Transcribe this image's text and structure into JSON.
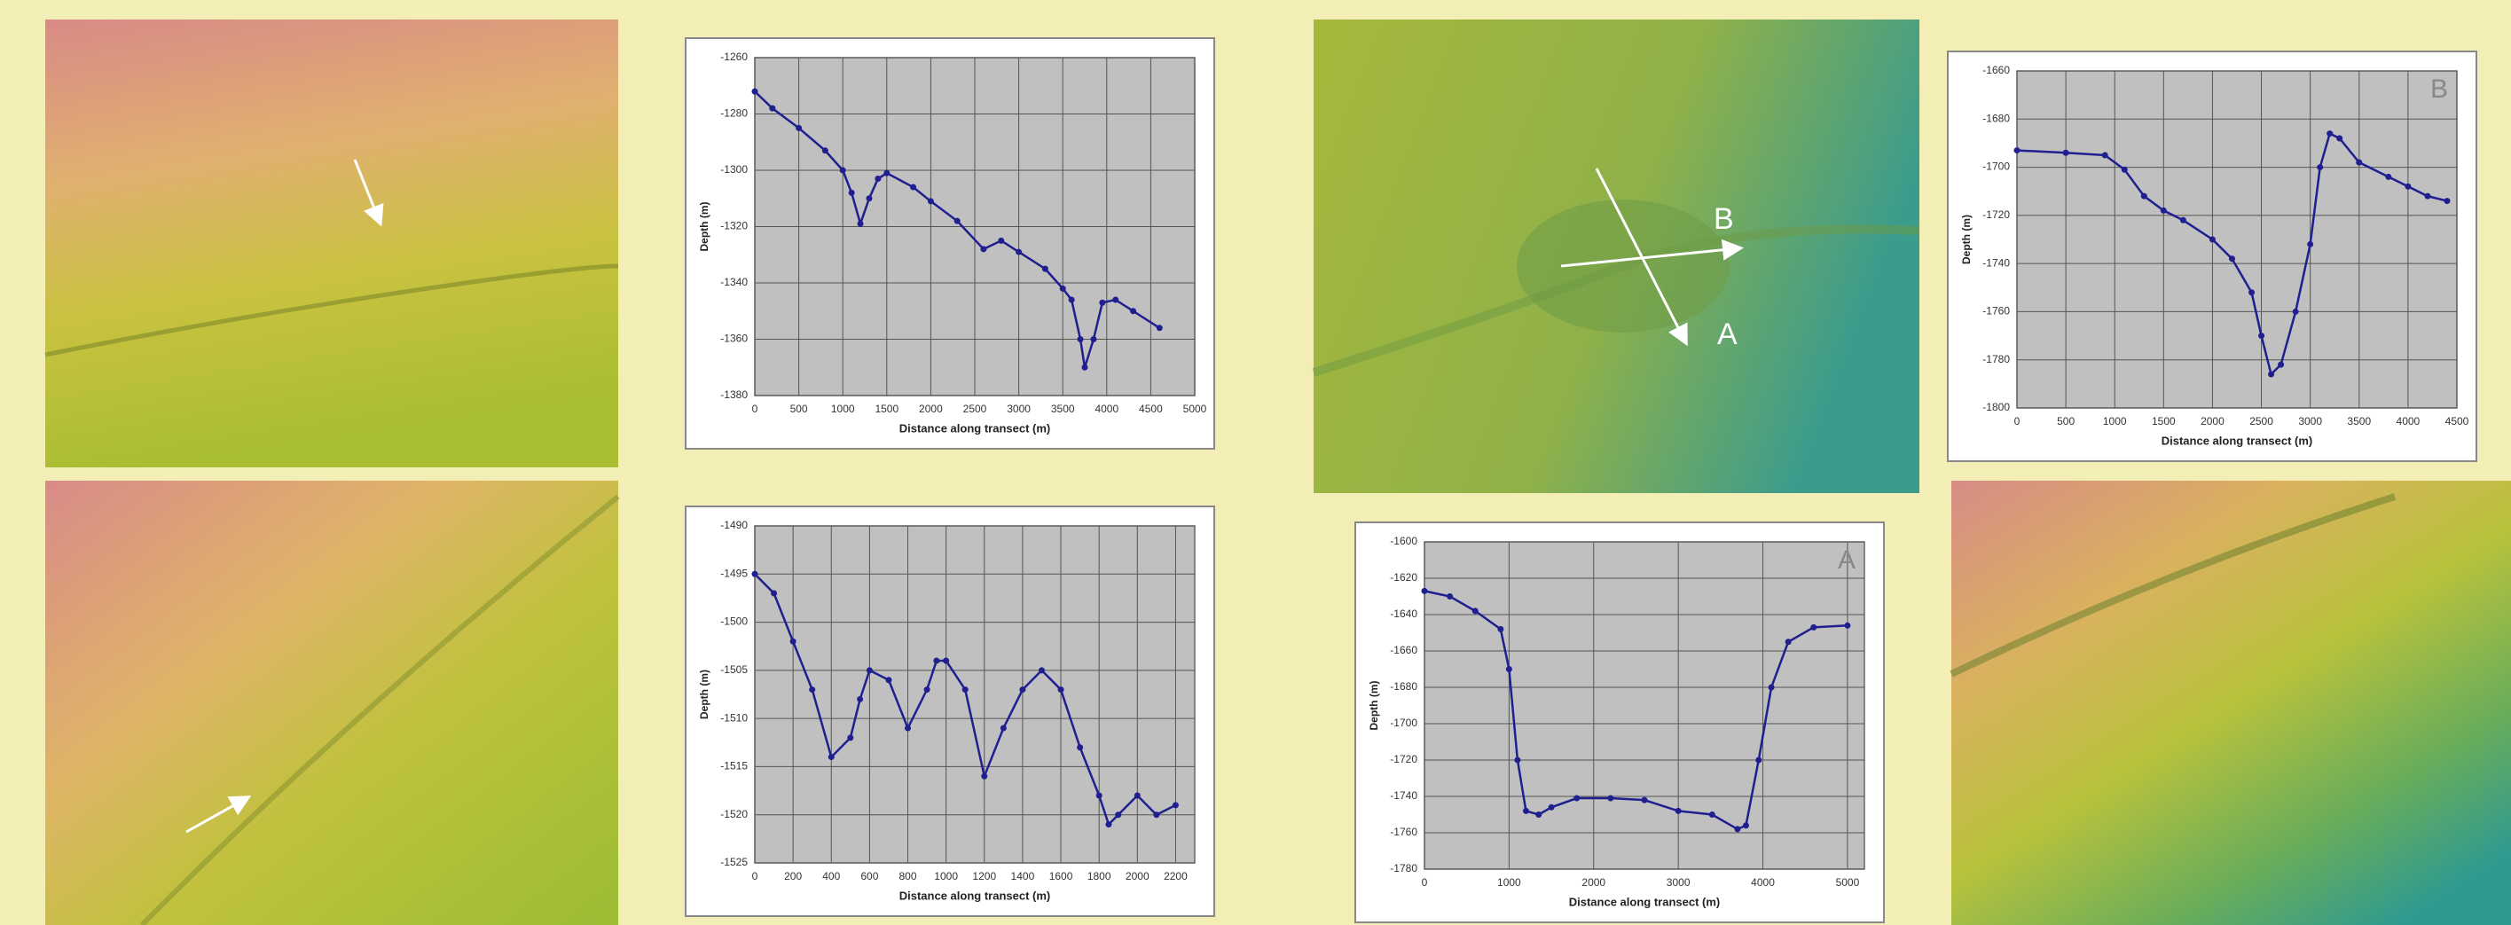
{
  "image_labels": [
    "B",
    "A"
  ],
  "chart_data": [
    {
      "type": "line",
      "xlabel": "Distance along transect (m)",
      "ylabel": "Depth (m)",
      "color": "#1f1f8f",
      "grid": true,
      "xlim": [
        0,
        5000
      ],
      "xticks": [
        0,
        500,
        1000,
        1500,
        2000,
        2500,
        3000,
        3500,
        4000,
        4500,
        5000
      ],
      "ylim": [
        -1380,
        -1260
      ],
      "yticks": [
        -1260,
        -1280,
        -1300,
        -1320,
        -1340,
        -1360,
        -1380
      ],
      "x": [
        0,
        200,
        500,
        800,
        1000,
        1100,
        1200,
        1300,
        1400,
        1500,
        1800,
        2000,
        2300,
        2600,
        2800,
        3000,
        3300,
        3500,
        3600,
        3700,
        3750,
        3850,
        3950,
        4100,
        4300,
        4600
      ],
      "values": [
        -1272,
        -1278,
        -1285,
        -1293,
        -1300,
        -1308,
        -1319,
        -1310,
        -1303,
        -1301,
        -1306,
        -1311,
        -1318,
        -1328,
        -1325,
        -1329,
        -1335,
        -1342,
        -1346,
        -1360,
        -1370,
        -1360,
        -1347,
        -1346,
        -1350,
        -1356
      ]
    },
    {
      "type": "line",
      "xlabel": "Distance along transect (m)",
      "ylabel": "Depth (m)",
      "color": "#1f1f8f",
      "grid": true,
      "xlim": [
        0,
        2300
      ],
      "xticks": [
        0,
        200,
        400,
        600,
        800,
        1000,
        1200,
        1400,
        1600,
        1800,
        2000,
        2200
      ],
      "ylim": [
        -1525,
        -1490
      ],
      "yticks": [
        -1490,
        -1495,
        -1500,
        -1505,
        -1510,
        -1515,
        -1520,
        -1525
      ],
      "x": [
        0,
        100,
        200,
        300,
        400,
        500,
        550,
        600,
        700,
        800,
        900,
        950,
        1000,
        1100,
        1200,
        1300,
        1400,
        1500,
        1600,
        1700,
        1800,
        1850,
        1900,
        2000,
        2100,
        2200
      ],
      "values": [
        -1495,
        -1497,
        -1502,
        -1507,
        -1514,
        -1512,
        -1508,
        -1505,
        -1506,
        -1511,
        -1507,
        -1504,
        -1504,
        -1507,
        -1516,
        -1511,
        -1507,
        -1505,
        -1507,
        -1513,
        -1518,
        -1521,
        -1520,
        -1518,
        -1520,
        -1519
      ]
    },
    {
      "type": "line",
      "xlabel": "Distance along transect (m)",
      "ylabel": "Depth (m)",
      "color": "#1f1f8f",
      "grid": true,
      "annotation": "B",
      "xlim": [
        0,
        4500
      ],
      "xticks": [
        0,
        500,
        1000,
        1500,
        2000,
        2500,
        3000,
        3500,
        4000,
        4500
      ],
      "ylim": [
        -1800,
        -1660
      ],
      "yticks": [
        -1660,
        -1680,
        -1700,
        -1720,
        -1740,
        -1760,
        -1780,
        -1800
      ],
      "x": [
        0,
        500,
        900,
        1100,
        1300,
        1500,
        1700,
        2000,
        2200,
        2400,
        2500,
        2600,
        2700,
        2850,
        3000,
        3100,
        3200,
        3300,
        3500,
        3800,
        4000,
        4200,
        4400
      ],
      "values": [
        -1693,
        -1694,
        -1695,
        -1701,
        -1712,
        -1718,
        -1722,
        -1730,
        -1738,
        -1752,
        -1770,
        -1786,
        -1782,
        -1760,
        -1732,
        -1700,
        -1686,
        -1688,
        -1698,
        -1704,
        -1708,
        -1712,
        -1714
      ]
    },
    {
      "type": "line",
      "xlabel": "Distance along transect (m)",
      "ylabel": "Depth (m)",
      "color": "#1f1f8f",
      "grid": true,
      "annotation": "A",
      "xlim": [
        0,
        5200
      ],
      "xticks": [
        0,
        1000,
        2000,
        3000,
        4000,
        5000
      ],
      "ylim": [
        -1780,
        -1600
      ],
      "yticks": [
        -1600,
        -1620,
        -1640,
        -1660,
        -1680,
        -1700,
        -1720,
        -1740,
        -1760,
        -1780
      ],
      "x": [
        0,
        300,
        600,
        900,
        1000,
        1100,
        1200,
        1350,
        1500,
        1800,
        2200,
        2600,
        3000,
        3400,
        3700,
        3800,
        3950,
        4100,
        4300,
        4600,
        5000
      ],
      "values": [
        -1627,
        -1630,
        -1638,
        -1648,
        -1670,
        -1720,
        -1748,
        -1750,
        -1746,
        -1741,
        -1741,
        -1742,
        -1748,
        -1750,
        -1758,
        -1756,
        -1720,
        -1680,
        -1655,
        -1647,
        -1646
      ]
    }
  ]
}
